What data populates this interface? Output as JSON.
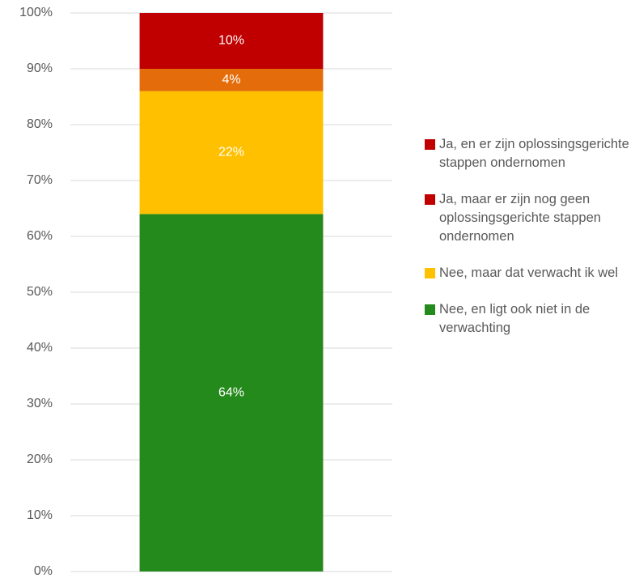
{
  "chart_data": {
    "type": "stacked_bar",
    "categories": [
      null
    ],
    "series": [
      {
        "name": "Nee, en ligt ook niet in de verwachting",
        "color": "#258a1c",
        "legend_color": "#258a1c",
        "values": [
          64
        ],
        "value_labels": [
          "64%"
        ]
      },
      {
        "name": "Nee, maar dat verwacht ik wel",
        "color": "#ffc000",
        "legend_color": "#ffc000",
        "values": [
          22
        ],
        "value_labels": [
          "22%"
        ]
      },
      {
        "name": "Ja, maar er zijn nog geen oplossingsgerichte stappen ondernomen",
        "color": "#e46c0a",
        "legend_color": "#c00000",
        "values": [
          4
        ],
        "value_labels": [
          "4%"
        ]
      },
      {
        "name": "Ja, en er zijn oplossingsgerichte stappen ondernomen",
        "color": "#c00000",
        "legend_color": "#c00000",
        "values": [
          10
        ],
        "value_labels": [
          "10%"
        ]
      }
    ],
    "ylim": [
      0,
      100
    ],
    "yticks": [
      {
        "value": 0,
        "label": "0%"
      },
      {
        "value": 10,
        "label": "10%"
      },
      {
        "value": 20,
        "label": "20%"
      },
      {
        "value": 30,
        "label": "30%"
      },
      {
        "value": 40,
        "label": "40%"
      },
      {
        "value": 50,
        "label": "50%"
      },
      {
        "value": 60,
        "label": "60%"
      },
      {
        "value": 70,
        "label": "70%"
      },
      {
        "value": 80,
        "label": "80%"
      },
      {
        "value": 90,
        "label": "90%"
      },
      {
        "value": 100,
        "label": "100%"
      }
    ],
    "grid": true,
    "legend": "right"
  }
}
